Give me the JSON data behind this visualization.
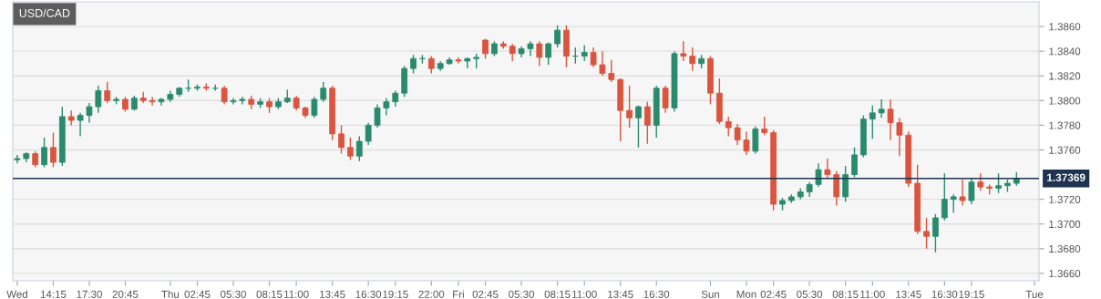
{
  "chart_data": {
    "type": "candlestick",
    "title": "USD/CAD",
    "categories": [
      "Wed",
      null,
      null,
      null,
      "14:15",
      null,
      null,
      null,
      "17:30",
      null,
      null,
      null,
      "20:45",
      null,
      null,
      null,
      null,
      "Thu",
      null,
      null,
      "02:45",
      null,
      null,
      null,
      "05:30",
      null,
      null,
      null,
      "08:15",
      null,
      null,
      "11:00",
      null,
      null,
      null,
      "13:45",
      null,
      null,
      null,
      "16:30",
      null,
      null,
      "19:15",
      null,
      null,
      null,
      "22:00",
      null,
      null,
      "Fri",
      null,
      null,
      "02:45",
      null,
      null,
      null,
      "05:30",
      null,
      null,
      null,
      "08:15",
      null,
      null,
      "11:00",
      null,
      null,
      null,
      "13:45",
      null,
      null,
      null,
      "16:30",
      null,
      null,
      null,
      null,
      null,
      "Sun",
      null,
      null,
      null,
      "Mon",
      null,
      null,
      "02:45",
      null,
      null,
      null,
      "05:30",
      null,
      null,
      null,
      "08:15",
      null,
      null,
      "11:00",
      null,
      null,
      null,
      "13:45",
      null,
      null,
      null,
      "16:30",
      null,
      null,
      "19:15",
      null,
      null,
      null,
      null,
      null,
      null,
      "Tue"
    ],
    "ohlc": [
      [
        1.3752,
        1.3756,
        1.3749,
        1.3753
      ],
      [
        1.3753,
        1.3758,
        1.375,
        1.3757
      ],
      [
        1.3757,
        1.3759,
        1.3746,
        1.3748
      ],
      [
        1.3748,
        1.377,
        1.3746,
        1.3762
      ],
      [
        1.3762,
        1.3774,
        1.3746,
        1.375
      ],
      [
        1.375,
        1.3795,
        1.3747,
        1.3787
      ],
      [
        1.3787,
        1.3792,
        1.378,
        1.3784
      ],
      [
        1.3784,
        1.379,
        1.3771,
        1.3788
      ],
      [
        1.3788,
        1.3798,
        1.3782,
        1.3795
      ],
      [
        1.3795,
        1.3812,
        1.379,
        1.3808
      ],
      [
        1.3808,
        1.3815,
        1.3798,
        1.38
      ],
      [
        1.38,
        1.3803,
        1.3797,
        1.3801
      ],
      [
        1.3801,
        1.3803,
        1.3791,
        1.3793
      ],
      [
        1.3793,
        1.3804,
        1.3792,
        1.3802
      ],
      [
        1.3802,
        1.3807,
        1.3798,
        1.38
      ],
      [
        1.38,
        1.3803,
        1.3796,
        1.3799
      ],
      [
        1.3799,
        1.3802,
        1.3796,
        1.3801
      ],
      [
        1.3801,
        1.3808,
        1.3799,
        1.3805
      ],
      [
        1.3805,
        1.3811,
        1.3803,
        1.381
      ],
      [
        1.381,
        1.3817,
        1.3807,
        1.381
      ],
      [
        1.381,
        1.3813,
        1.3808,
        1.3811
      ],
      [
        1.3811,
        1.3814,
        1.3808,
        1.381
      ],
      [
        1.381,
        1.3813,
        1.3808,
        1.381
      ],
      [
        1.381,
        1.3812,
        1.3797,
        1.3799
      ],
      [
        1.3799,
        1.3802,
        1.3797,
        1.38
      ],
      [
        1.38,
        1.3803,
        1.3797,
        1.3801
      ],
      [
        1.3801,
        1.3804,
        1.3793,
        1.3797
      ],
      [
        1.3797,
        1.3802,
        1.3794,
        1.3799
      ],
      [
        1.3799,
        1.3802,
        1.379,
        1.3795
      ],
      [
        1.3795,
        1.3802,
        1.3793,
        1.3799
      ],
      [
        1.3799,
        1.3809,
        1.3798,
        1.3802
      ],
      [
        1.3802,
        1.3804,
        1.3792,
        1.3794
      ],
      [
        1.3794,
        1.3795,
        1.3786,
        1.3788
      ],
      [
        1.3788,
        1.3803,
        1.3786,
        1.3801
      ],
      [
        1.3801,
        1.3815,
        1.3799,
        1.381
      ],
      [
        1.381,
        1.3812,
        1.3768,
        1.3773
      ],
      [
        1.3773,
        1.378,
        1.3757,
        1.3762
      ],
      [
        1.3762,
        1.377,
        1.3752,
        1.3755
      ],
      [
        1.3755,
        1.3771,
        1.3751,
        1.3767
      ],
      [
        1.3767,
        1.3782,
        1.3764,
        1.378
      ],
      [
        1.378,
        1.3797,
        1.3778,
        1.3794
      ],
      [
        1.3794,
        1.3802,
        1.3788,
        1.3799
      ],
      [
        1.3799,
        1.3808,
        1.3795,
        1.3806
      ],
      [
        1.3806,
        1.3828,
        1.3803,
        1.3826
      ],
      [
        1.3826,
        1.3837,
        1.3822,
        1.3834
      ],
      [
        1.3834,
        1.3837,
        1.383,
        1.3834
      ],
      [
        1.3834,
        1.3836,
        1.3822,
        1.3826
      ],
      [
        1.3826,
        1.3832,
        1.3824,
        1.383
      ],
      [
        1.383,
        1.3835,
        1.3829,
        1.3833
      ],
      [
        1.3833,
        1.3835,
        1.383,
        1.3832
      ],
      [
        1.3832,
        1.3835,
        1.3826,
        1.3834
      ],
      [
        1.3834,
        1.3838,
        1.3826,
        1.3835
      ],
      [
        1.3849,
        1.385,
        1.3834,
        1.3838
      ],
      [
        1.3838,
        1.3848,
        1.3836,
        1.3846
      ],
      [
        1.3846,
        1.3848,
        1.3842,
        1.3844
      ],
      [
        1.3844,
        1.3846,
        1.3832,
        1.3838
      ],
      [
        1.3838,
        1.3844,
        1.3835,
        1.3842
      ],
      [
        1.3842,
        1.3848,
        1.3836,
        1.3846
      ],
      [
        1.3846,
        1.3848,
        1.3828,
        1.3835
      ],
      [
        1.3835,
        1.3847,
        1.3829,
        1.3846
      ],
      [
        1.3846,
        1.3861,
        1.3843,
        1.3857
      ],
      [
        1.3857,
        1.3861,
        1.3827,
        1.3836
      ],
      [
        1.3836,
        1.3843,
        1.383,
        1.3836
      ],
      [
        1.3836,
        1.3845,
        1.3832,
        1.3839
      ],
      [
        1.3839,
        1.3843,
        1.3827,
        1.3829
      ],
      [
        1.3829,
        1.384,
        1.382,
        1.3822
      ],
      [
        1.3822,
        1.3833,
        1.3815,
        1.3817
      ],
      [
        1.3817,
        1.3818,
        1.3767,
        1.3792
      ],
      [
        1.3792,
        1.3812,
        1.3778,
        1.3786
      ],
      [
        1.3786,
        1.3796,
        1.3762,
        1.3795
      ],
      [
        1.3795,
        1.3799,
        1.3765,
        1.378
      ],
      [
        1.378,
        1.3812,
        1.377,
        1.381
      ],
      [
        1.381,
        1.3812,
        1.379,
        1.3794
      ],
      [
        1.3794,
        1.384,
        1.3791,
        1.3838
      ],
      [
        1.3838,
        1.3848,
        1.3832,
        1.3836
      ],
      [
        1.3836,
        1.3843,
        1.3824,
        1.383
      ],
      [
        1.383,
        1.3837,
        1.3826,
        1.3834
      ],
      [
        1.3834,
        1.3836,
        1.3797,
        1.3806
      ],
      [
        1.3806,
        1.3818,
        1.3781,
        1.3783
      ],
      [
        1.3783,
        1.3787,
        1.3771,
        1.3778
      ],
      [
        1.3778,
        1.3781,
        1.3764,
        1.3768
      ],
      [
        1.3768,
        1.3775,
        1.3756,
        1.3759
      ],
      [
        1.3759,
        1.3779,
        1.3757,
        1.3777
      ],
      [
        1.3777,
        1.3787,
        1.3772,
        1.3774
      ],
      [
        1.3774,
        1.3776,
        1.3711,
        1.3716
      ],
      [
        1.3716,
        1.3721,
        1.3711,
        1.3719
      ],
      [
        1.3719,
        1.3724,
        1.3717,
        1.3722
      ],
      [
        1.3722,
        1.3729,
        1.372,
        1.3726
      ],
      [
        1.3726,
        1.3734,
        1.3722,
        1.3732
      ],
      [
        1.3732,
        1.3749,
        1.373,
        1.3744
      ],
      [
        1.3744,
        1.3753,
        1.3737,
        1.374
      ],
      [
        1.374,
        1.3743,
        1.3715,
        1.3722
      ],
      [
        1.3722,
        1.3747,
        1.3718,
        1.374
      ],
      [
        1.374,
        1.3762,
        1.3738,
        1.3756
      ],
      [
        1.3756,
        1.3788,
        1.3754,
        1.3785
      ],
      [
        1.3785,
        1.3796,
        1.3769,
        1.379
      ],
      [
        1.379,
        1.3801,
        1.3786,
        1.3793
      ],
      [
        1.3793,
        1.3801,
        1.3768,
        1.3782
      ],
      [
        1.3782,
        1.3786,
        1.3755,
        1.3772
      ],
      [
        1.3772,
        1.3775,
        1.373,
        1.3733
      ],
      [
        1.3733,
        1.3748,
        1.3692,
        1.3694
      ],
      [
        1.3694,
        1.3705,
        1.368,
        1.369
      ],
      [
        1.369,
        1.3708,
        1.3677,
        1.3705
      ],
      [
        1.3705,
        1.3741,
        1.3703,
        1.372
      ],
      [
        1.372,
        1.3724,
        1.3709,
        1.3722
      ],
      [
        1.3722,
        1.3736,
        1.3715,
        1.3719
      ],
      [
        1.3719,
        1.3737,
        1.3716,
        1.3734
      ],
      [
        1.3734,
        1.3741,
        1.3727,
        1.373
      ],
      [
        1.373,
        1.3732,
        1.3724,
        1.3729
      ],
      [
        1.3729,
        1.3741,
        1.3725,
        1.3731
      ],
      [
        1.3731,
        1.3736,
        1.3726,
        1.3733
      ],
      [
        1.3733,
        1.3742,
        1.3731,
        1.3737
      ],
      null,
      null
    ],
    "colors": [
      "#2a8a6e",
      "#2a8a6e",
      "#d9553f",
      "#2a8a6e",
      "#d9553f",
      "#2a8a6e",
      "#d9553f",
      "#2a8a6e",
      "#2a8a6e",
      "#2a8a6e",
      "#d9553f",
      "#2a8a6e",
      "#d9553f",
      "#2a8a6e",
      "#d9553f",
      "#d9553f",
      "#2a8a6e",
      "#2a8a6e",
      "#2a8a6e",
      "#2a8a6e",
      "#2a8a6e",
      "#d9553f",
      "#2a8a6e",
      "#d9553f",
      "#2a8a6e",
      "#2a8a6e",
      "#d9553f",
      "#2a8a6e",
      "#d9553f",
      "#2a8a6e",
      "#2a8a6e",
      "#d9553f",
      "#d9553f",
      "#2a8a6e",
      "#2a8a6e",
      "#d9553f",
      "#d9553f",
      "#d9553f",
      "#2a8a6e",
      "#2a8a6e",
      "#2a8a6e",
      "#2a8a6e",
      "#2a8a6e",
      "#2a8a6e",
      "#2a8a6e",
      "#2a8a6e",
      "#d9553f",
      "#2a8a6e",
      "#2a8a6e",
      "#d9553f",
      "#2a8a6e",
      "#2a8a6e",
      "#d9553f",
      "#2a8a6e",
      "#d9553f",
      "#d9553f",
      "#2a8a6e",
      "#2a8a6e",
      "#d9553f",
      "#2a8a6e",
      "#2a8a6e",
      "#d9553f",
      "#2a8a6e",
      "#2a8a6e",
      "#d9553f",
      "#d9553f",
      "#d9553f",
      "#d9553f",
      "#d9553f",
      "#2a8a6e",
      "#d9553f",
      "#2a8a6e",
      "#d9553f",
      "#2a8a6e",
      "#d9553f",
      "#d9553f",
      "#2a8a6e",
      "#d9553f",
      "#d9553f",
      "#d9553f",
      "#d9553f",
      "#d9553f",
      "#2a8a6e",
      "#d9553f",
      "#d9553f",
      "#2a8a6e",
      "#2a8a6e",
      "#2a8a6e",
      "#2a8a6e",
      "#2a8a6e",
      "#d9553f",
      "#d9553f",
      "#2a8a6e",
      "#2a8a6e",
      "#2a8a6e",
      "#2a8a6e",
      "#2a8a6e",
      "#d9553f",
      "#d9553f",
      "#d9553f",
      "#d9553f",
      "#d9553f",
      "#2a8a6e",
      "#2a8a6e",
      "#2a8a6e",
      "#d9553f",
      "#2a8a6e",
      "#d9553f",
      "#d9553f",
      "#2a8a6e",
      "#2a8a6e",
      "#2a8a6e",
      null,
      null
    ],
    "ylim": [
      1.3654,
      1.388
    ],
    "yticks": [
      {
        "value": 1.366,
        "label": "1.3660"
      },
      {
        "value": 1.368,
        "label": "1.3680"
      },
      {
        "value": 1.37,
        "label": "1.3700"
      },
      {
        "value": 1.372,
        "label": "1.3720"
      },
      {
        "value": 1.376,
        "label": "1.3760"
      },
      {
        "value": 1.378,
        "label": "1.3780"
      },
      {
        "value": 1.38,
        "label": "1.3800"
      },
      {
        "value": 1.382,
        "label": "1.3820"
      },
      {
        "value": 1.384,
        "label": "1.3840"
      },
      {
        "value": 1.386,
        "label": "1.3860"
      }
    ],
    "ref_lines": [
      {
        "axis": "y",
        "value": 1.37369,
        "label": "1.37369",
        "color": "#1f3350"
      }
    ],
    "grid": "y"
  }
}
